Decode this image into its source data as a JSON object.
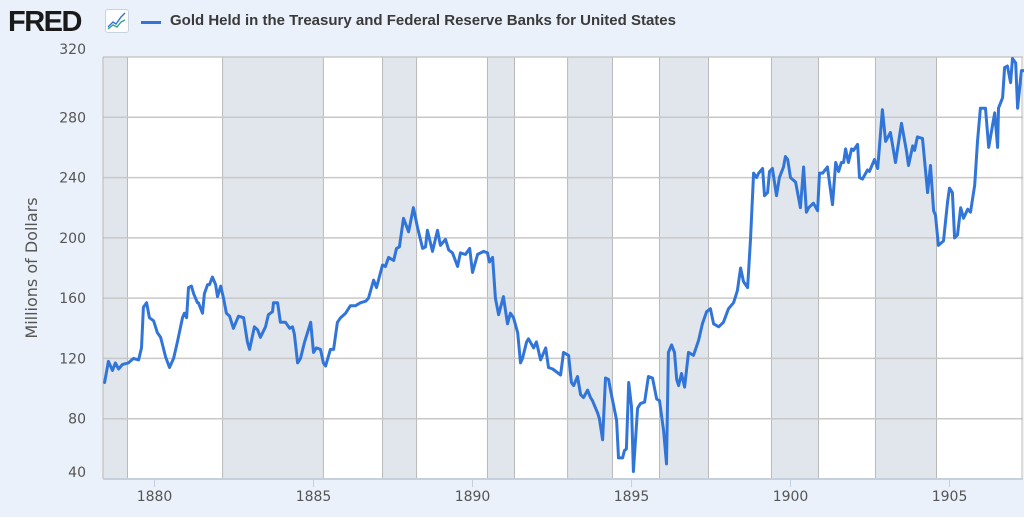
{
  "header": {
    "logo_text": "FRED",
    "logo_icon": "line-chart-icon",
    "legend_label": "Gold Held in the Treasury and Federal Reserve Banks for United States"
  },
  "colors": {
    "series": "#3275d8",
    "recession": "#e1e6ec",
    "background": "#eaf1fa",
    "grid": "#c8c8c8"
  },
  "chart_data": {
    "type": "line",
    "title": "Gold Held in the Treasury and Federal Reserve Banks for United States",
    "xlabel": "",
    "ylabel": "Millions of Dollars",
    "xlim": [
      1878.38,
      1907.31
    ],
    "ylim": [
      40,
      320
    ],
    "grid": true,
    "legend": "top-left",
    "x_ticks": [
      1880,
      1885,
      1890,
      1895,
      1900,
      1905
    ],
    "x_tick_labels": [
      "1880",
      "1885",
      "1890",
      "1895",
      "1900",
      "1905"
    ],
    "y_ticks": [
      40,
      80,
      120,
      160,
      200,
      240,
      280,
      320
    ],
    "y_tick_labels": [
      "40",
      "80",
      "120",
      "160",
      "200",
      "240",
      "280",
      "320"
    ],
    "recessions": [
      [
        1878.38,
        1879.15
      ],
      [
        1882.14,
        1885.31
      ],
      [
        1887.17,
        1888.24
      ],
      [
        1890.47,
        1891.32
      ],
      [
        1892.99,
        1894.4
      ],
      [
        1895.88,
        1897.42
      ],
      [
        1899.4,
        1900.88
      ],
      [
        1902.67,
        1904.59
      ]
    ],
    "series": [
      {
        "name": "Gold Held in the Treasury and Federal Reserve Banks for United States",
        "points": [
          [
            1878.43,
            104
          ],
          [
            1878.55,
            118
          ],
          [
            1878.68,
            112
          ],
          [
            1878.77,
            117
          ],
          [
            1878.87,
            113
          ],
          [
            1878.99,
            116
          ],
          [
            1879.18,
            117
          ],
          [
            1879.34,
            120
          ],
          [
            1879.5,
            119
          ],
          [
            1879.59,
            127
          ],
          [
            1879.65,
            154
          ],
          [
            1879.75,
            157
          ],
          [
            1879.84,
            147
          ],
          [
            1879.97,
            145
          ],
          [
            1880.09,
            137
          ],
          [
            1880.19,
            134
          ],
          [
            1880.35,
            121
          ],
          [
            1880.47,
            114
          ],
          [
            1880.6,
            120
          ],
          [
            1880.72,
            131
          ],
          [
            1880.88,
            147
          ],
          [
            1880.94,
            150
          ],
          [
            1881.01,
            147
          ],
          [
            1881.07,
            167
          ],
          [
            1881.16,
            168
          ],
          [
            1881.23,
            163
          ],
          [
            1881.35,
            157
          ],
          [
            1881.38,
            157
          ],
          [
            1881.51,
            150
          ],
          [
            1881.57,
            163
          ],
          [
            1881.67,
            169
          ],
          [
            1881.73,
            169
          ],
          [
            1881.82,
            174
          ],
          [
            1881.92,
            169
          ],
          [
            1881.98,
            161
          ],
          [
            1882.08,
            168
          ],
          [
            1882.17,
            160
          ],
          [
            1882.26,
            150
          ],
          [
            1882.36,
            148
          ],
          [
            1882.48,
            140
          ],
          [
            1882.64,
            148
          ],
          [
            1882.8,
            147
          ],
          [
            1882.92,
            131
          ],
          [
            1882.99,
            126
          ],
          [
            1883.14,
            141
          ],
          [
            1883.24,
            139
          ],
          [
            1883.33,
            134
          ],
          [
            1883.49,
            141
          ],
          [
            1883.58,
            149
          ],
          [
            1883.71,
            151
          ],
          [
            1883.74,
            157
          ],
          [
            1883.87,
            157
          ],
          [
            1883.96,
            144
          ],
          [
            1884.12,
            144
          ],
          [
            1884.25,
            140
          ],
          [
            1884.34,
            141
          ],
          [
            1884.4,
            136
          ],
          [
            1884.5,
            117
          ],
          [
            1884.59,
            120
          ],
          [
            1884.72,
            131
          ],
          [
            1884.91,
            144
          ],
          [
            1885.0,
            124
          ],
          [
            1885.09,
            127
          ],
          [
            1885.22,
            126
          ],
          [
            1885.31,
            117
          ],
          [
            1885.38,
            115
          ],
          [
            1885.53,
            126
          ],
          [
            1885.63,
            126
          ],
          [
            1885.75,
            144
          ],
          [
            1885.85,
            147
          ],
          [
            1886.01,
            150
          ],
          [
            1886.16,
            155
          ],
          [
            1886.32,
            155
          ],
          [
            1886.48,
            157
          ],
          [
            1886.64,
            158
          ],
          [
            1886.73,
            160
          ],
          [
            1886.89,
            172
          ],
          [
            1886.98,
            167
          ],
          [
            1887.17,
            182
          ],
          [
            1887.26,
            181
          ],
          [
            1887.36,
            187
          ],
          [
            1887.52,
            185
          ],
          [
            1887.61,
            193
          ],
          [
            1887.7,
            194
          ],
          [
            1887.83,
            213
          ],
          [
            1887.99,
            204
          ],
          [
            1888.14,
            220
          ],
          [
            1888.27,
            207
          ],
          [
            1888.43,
            193
          ],
          [
            1888.52,
            194
          ],
          [
            1888.58,
            205
          ],
          [
            1888.74,
            191
          ],
          [
            1888.9,
            205
          ],
          [
            1888.99,
            195
          ],
          [
            1889.15,
            199
          ],
          [
            1889.25,
            192
          ],
          [
            1889.37,
            190
          ],
          [
            1889.53,
            181
          ],
          [
            1889.62,
            190
          ],
          [
            1889.78,
            189
          ],
          [
            1889.91,
            193
          ],
          [
            1890.0,
            177
          ],
          [
            1890.16,
            189
          ],
          [
            1890.35,
            191
          ],
          [
            1890.47,
            190
          ],
          [
            1890.53,
            184
          ],
          [
            1890.63,
            187
          ],
          [
            1890.72,
            160
          ],
          [
            1890.82,
            149
          ],
          [
            1890.97,
            161
          ],
          [
            1891.1,
            143
          ],
          [
            1891.19,
            150
          ],
          [
            1891.29,
            147
          ],
          [
            1891.42,
            137
          ],
          [
            1891.51,
            117
          ],
          [
            1891.57,
            120
          ],
          [
            1891.7,
            131
          ],
          [
            1891.76,
            133
          ],
          [
            1891.92,
            127
          ],
          [
            1892.01,
            131
          ],
          [
            1892.14,
            119
          ],
          [
            1892.3,
            127
          ],
          [
            1892.39,
            114
          ],
          [
            1892.52,
            113
          ],
          [
            1892.77,
            109
          ],
          [
            1892.86,
            124
          ],
          [
            1893.02,
            122
          ],
          [
            1893.11,
            104
          ],
          [
            1893.18,
            102
          ],
          [
            1893.3,
            108
          ],
          [
            1893.4,
            96
          ],
          [
            1893.49,
            94
          ],
          [
            1893.62,
            99
          ],
          [
            1893.71,
            94
          ],
          [
            1893.77,
            92
          ],
          [
            1893.93,
            84
          ],
          [
            1893.99,
            80
          ],
          [
            1894.09,
            66
          ],
          [
            1894.18,
            107
          ],
          [
            1894.28,
            106
          ],
          [
            1894.34,
            99
          ],
          [
            1894.53,
            79
          ],
          [
            1894.59,
            54
          ],
          [
            1894.72,
            54
          ],
          [
            1894.78,
            59
          ],
          [
            1894.84,
            60
          ],
          [
            1894.91,
            104
          ],
          [
            1895.0,
            88
          ],
          [
            1895.06,
            45
          ],
          [
            1895.19,
            87
          ],
          [
            1895.28,
            90
          ],
          [
            1895.41,
            91
          ],
          [
            1895.53,
            108
          ],
          [
            1895.66,
            107
          ],
          [
            1895.79,
            93
          ],
          [
            1895.88,
            92
          ],
          [
            1896.01,
            72
          ],
          [
            1896.1,
            50
          ],
          [
            1896.16,
            124
          ],
          [
            1896.26,
            129
          ],
          [
            1896.35,
            124
          ],
          [
            1896.42,
            106
          ],
          [
            1896.48,
            102
          ],
          [
            1896.57,
            110
          ],
          [
            1896.67,
            101
          ],
          [
            1896.79,
            124
          ],
          [
            1896.95,
            122
          ],
          [
            1897.11,
            132
          ],
          [
            1897.23,
            143
          ],
          [
            1897.36,
            151
          ],
          [
            1897.48,
            153
          ],
          [
            1897.58,
            143
          ],
          [
            1897.74,
            141
          ],
          [
            1897.89,
            144
          ],
          [
            1898.05,
            153
          ],
          [
            1898.21,
            157
          ],
          [
            1898.33,
            165
          ],
          [
            1898.43,
            180
          ],
          [
            1898.52,
            171
          ],
          [
            1898.65,
            167
          ],
          [
            1898.74,
            199
          ],
          [
            1898.84,
            243
          ],
          [
            1898.93,
            240
          ],
          [
            1899.0,
            243
          ],
          [
            1899.12,
            246
          ],
          [
            1899.18,
            228
          ],
          [
            1899.28,
            230
          ],
          [
            1899.34,
            244
          ],
          [
            1899.43,
            246
          ],
          [
            1899.56,
            228
          ],
          [
            1899.65,
            240
          ],
          [
            1899.78,
            247
          ],
          [
            1899.84,
            254
          ],
          [
            1899.91,
            252
          ],
          [
            1900.0,
            240
          ],
          [
            1900.16,
            237
          ],
          [
            1900.31,
            220
          ],
          [
            1900.41,
            247
          ],
          [
            1900.5,
            217
          ],
          [
            1900.57,
            220
          ],
          [
            1900.72,
            223
          ],
          [
            1900.85,
            218
          ],
          [
            1900.91,
            243
          ],
          [
            1901.01,
            243
          ],
          [
            1901.16,
            247
          ],
          [
            1901.32,
            222
          ],
          [
            1901.42,
            250
          ],
          [
            1901.51,
            244
          ],
          [
            1901.6,
            250
          ],
          [
            1901.67,
            250
          ],
          [
            1901.73,
            259
          ],
          [
            1901.82,
            250
          ],
          [
            1901.92,
            259
          ],
          [
            1901.98,
            258
          ],
          [
            1902.11,
            262
          ],
          [
            1902.17,
            240
          ],
          [
            1902.26,
            239
          ],
          [
            1902.42,
            245
          ],
          [
            1902.48,
            244
          ],
          [
            1902.64,
            252
          ],
          [
            1902.74,
            246
          ],
          [
            1902.89,
            285
          ],
          [
            1902.99,
            264
          ],
          [
            1903.14,
            270
          ],
          [
            1903.3,
            250
          ],
          [
            1903.49,
            276
          ],
          [
            1903.65,
            257
          ],
          [
            1903.71,
            248
          ],
          [
            1903.84,
            261
          ],
          [
            1903.9,
            258
          ],
          [
            1903.99,
            267
          ],
          [
            1904.15,
            266
          ],
          [
            1904.31,
            230
          ],
          [
            1904.4,
            248
          ],
          [
            1904.5,
            218
          ],
          [
            1904.56,
            215
          ],
          [
            1904.65,
            195
          ],
          [
            1904.81,
            198
          ],
          [
            1904.94,
            224
          ],
          [
            1905.0,
            233
          ],
          [
            1905.09,
            230
          ],
          [
            1905.16,
            200
          ],
          [
            1905.25,
            202
          ],
          [
            1905.35,
            220
          ],
          [
            1905.44,
            213
          ],
          [
            1905.57,
            219
          ],
          [
            1905.66,
            217
          ],
          [
            1905.79,
            235
          ],
          [
            1905.88,
            264
          ],
          [
            1905.97,
            286
          ],
          [
            1906.13,
            286
          ],
          [
            1906.23,
            260
          ],
          [
            1906.42,
            283
          ],
          [
            1906.51,
            260
          ],
          [
            1906.54,
            286
          ],
          [
            1906.67,
            293
          ],
          [
            1906.73,
            313
          ],
          [
            1906.82,
            314
          ],
          [
            1906.92,
            303
          ],
          [
            1906.98,
            319
          ],
          [
            1907.08,
            316
          ],
          [
            1907.14,
            286
          ],
          [
            1907.26,
            311
          ],
          [
            1907.33,
            311
          ]
        ]
      }
    ]
  }
}
